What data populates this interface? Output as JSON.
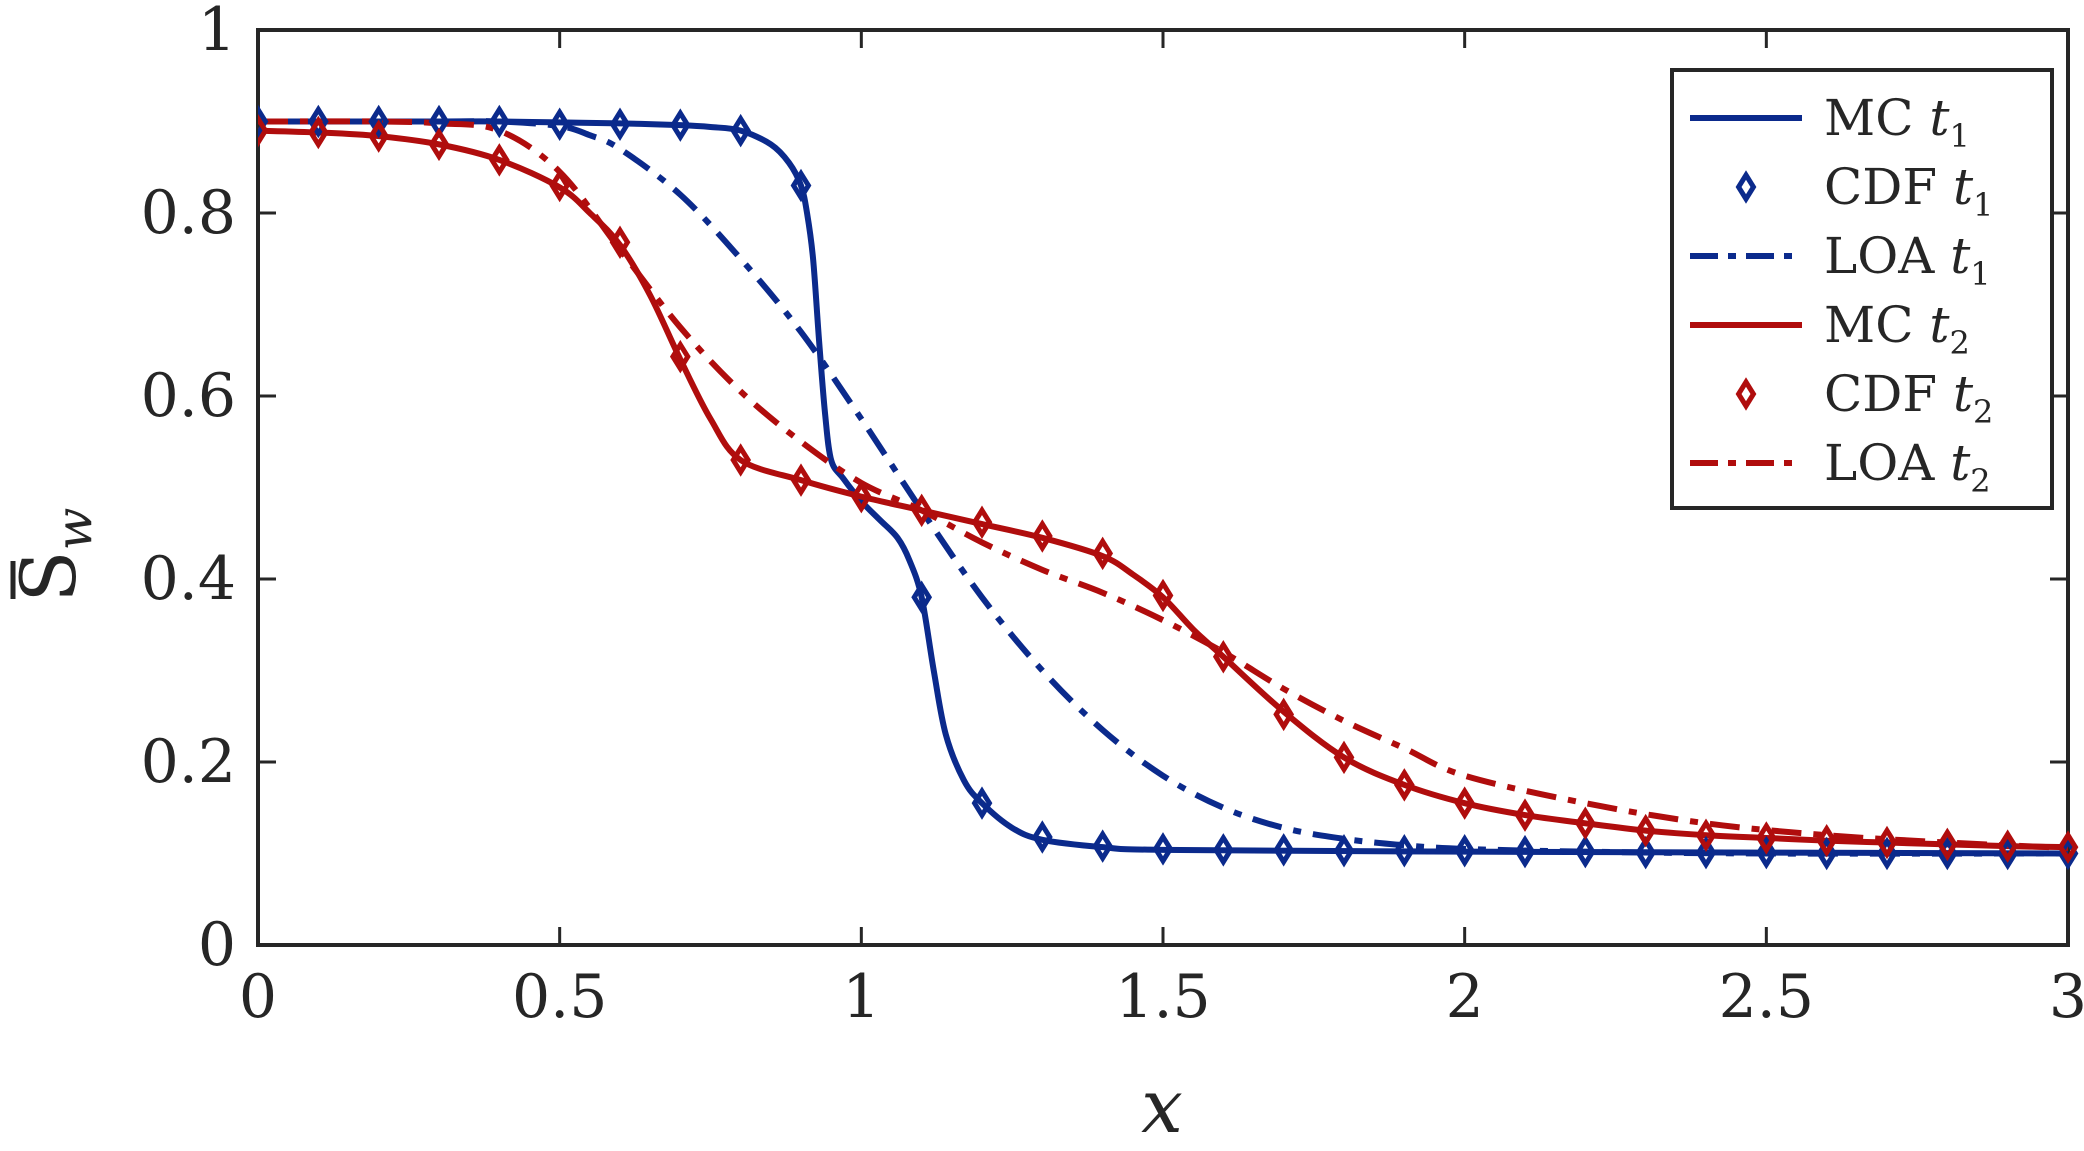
{
  "chart_data": {
    "type": "line",
    "xlabel": "x",
    "ylabel": {
      "base": "S",
      "subscript": "w",
      "overbar": true
    },
    "xlim": [
      0,
      3
    ],
    "ylim": [
      0,
      1
    ],
    "xticks": [
      0,
      0.5,
      1,
      1.5,
      2,
      2.5,
      3
    ],
    "xtick_labels": [
      "0",
      "0.5",
      "1",
      "1.5",
      "2",
      "2.5",
      "3"
    ],
    "yticks": [
      0,
      0.2,
      0.4,
      0.6,
      0.8,
      1
    ],
    "ytick_labels": [
      "0",
      "0.2",
      "0.4",
      "0.6",
      "0.8",
      "1"
    ],
    "grid": false,
    "legend_position": "top-right",
    "colors": {
      "t1": "#0b2a8c",
      "t2": "#b00d0d",
      "text": "#262626",
      "axes": "#262626"
    },
    "series": [
      {
        "name": "MC t1",
        "legend_main": "MC ",
        "legend_var": "t",
        "legend_sub": "1",
        "style": "solid",
        "color": "#0b2a8c",
        "x": [
          0,
          0.1,
          0.2,
          0.3,
          0.4,
          0.5,
          0.6,
          0.7,
          0.75,
          0.8,
          0.85,
          0.88,
          0.9,
          0.91,
          0.92,
          0.93,
          0.94,
          0.95,
          0.97,
          1.0,
          1.03,
          1.06,
          1.08,
          1.1,
          1.12,
          1.14,
          1.17,
          1.2,
          1.25,
          1.3,
          1.4,
          1.5,
          2.0,
          2.5,
          3.0
        ],
        "y": [
          0.9,
          0.9,
          0.9,
          0.9,
          0.9,
          0.899,
          0.898,
          0.896,
          0.894,
          0.89,
          0.875,
          0.855,
          0.83,
          0.8,
          0.75,
          0.66,
          0.58,
          0.53,
          0.51,
          0.485,
          0.465,
          0.445,
          0.42,
          0.38,
          0.3,
          0.23,
          0.18,
          0.155,
          0.128,
          0.115,
          0.107,
          0.104,
          0.102,
          0.101,
          0.1
        ]
      },
      {
        "name": "CDF t1",
        "legend_main": "CDF ",
        "legend_var": "t",
        "legend_sub": "1",
        "style": "diamond",
        "color": "#0b2a8c",
        "x": [
          0,
          0.1,
          0.2,
          0.3,
          0.4,
          0.5,
          0.6,
          0.7,
          0.8,
          0.9,
          1.1,
          1.2,
          1.3,
          1.4,
          1.5,
          1.6,
          1.7,
          1.8,
          1.9,
          2.0,
          2.1,
          2.2,
          2.3,
          2.4,
          2.5,
          2.6,
          2.7,
          2.8,
          2.9,
          3.0
        ],
        "y": [
          0.9,
          0.9,
          0.9,
          0.9,
          0.9,
          0.897,
          0.897,
          0.896,
          0.89,
          0.83,
          0.38,
          0.155,
          0.118,
          0.108,
          0.105,
          0.104,
          0.104,
          0.103,
          0.103,
          0.103,
          0.102,
          0.102,
          0.101,
          0.101,
          0.101,
          0.1,
          0.1,
          0.1,
          0.1,
          0.1
        ]
      },
      {
        "name": "LOA t1",
        "legend_main": "LOA ",
        "legend_var": "t",
        "legend_sub": "1",
        "style": "dashdot",
        "color": "#0b2a8c",
        "x": [
          0,
          0.3,
          0.4,
          0.5,
          0.55,
          0.6,
          0.7,
          0.8,
          0.9,
          1.0,
          1.1,
          1.2,
          1.3,
          1.4,
          1.5,
          1.6,
          1.7,
          1.8,
          1.9,
          2.0,
          2.2,
          2.5,
          3.0
        ],
        "y": [
          0.9,
          0.9,
          0.9,
          0.895,
          0.885,
          0.87,
          0.82,
          0.75,
          0.67,
          0.575,
          0.475,
          0.38,
          0.3,
          0.235,
          0.185,
          0.15,
          0.128,
          0.116,
          0.109,
          0.105,
          0.102,
          0.1,
          0.1
        ]
      },
      {
        "name": "MC t2",
        "legend_main": "MC ",
        "legend_var": "t",
        "legend_sub": "2",
        "style": "solid",
        "color": "#b00d0d",
        "x": [
          0,
          0.1,
          0.2,
          0.3,
          0.4,
          0.5,
          0.55,
          0.6,
          0.65,
          0.7,
          0.75,
          0.8,
          0.9,
          1.0,
          1.1,
          1.2,
          1.3,
          1.4,
          1.45,
          1.5,
          1.55,
          1.6,
          1.7,
          1.8,
          1.9,
          2.0,
          2.1,
          2.2,
          2.3,
          2.4,
          2.5,
          2.6,
          2.7,
          2.8,
          2.9,
          3.0
        ],
        "y": [
          0.89,
          0.888,
          0.884,
          0.875,
          0.858,
          0.828,
          0.8,
          0.765,
          0.71,
          0.64,
          0.575,
          0.53,
          0.508,
          0.49,
          0.475,
          0.46,
          0.445,
          0.425,
          0.405,
          0.38,
          0.345,
          0.315,
          0.255,
          0.205,
          0.175,
          0.155,
          0.142,
          0.133,
          0.125,
          0.12,
          0.117,
          0.114,
          0.112,
          0.11,
          0.108,
          0.107
        ]
      },
      {
        "name": "CDF t2",
        "legend_main": "CDF ",
        "legend_var": "t",
        "legend_sub": "2",
        "style": "diamond",
        "color": "#b00d0d",
        "x": [
          0,
          0.1,
          0.2,
          0.3,
          0.4,
          0.5,
          0.6,
          0.7,
          0.8,
          0.9,
          1.0,
          1.1,
          1.2,
          1.3,
          1.4,
          1.5,
          1.6,
          1.7,
          1.8,
          1.9,
          2.0,
          2.1,
          2.2,
          2.3,
          2.4,
          2.5,
          2.6,
          2.7,
          2.8,
          2.9,
          3.0
        ],
        "y": [
          0.89,
          0.888,
          0.884,
          0.875,
          0.858,
          0.83,
          0.768,
          0.643,
          0.53,
          0.508,
          0.49,
          0.475,
          0.462,
          0.447,
          0.428,
          0.382,
          0.315,
          0.252,
          0.205,
          0.175,
          0.155,
          0.142,
          0.133,
          0.125,
          0.12,
          0.117,
          0.114,
          0.112,
          0.11,
          0.108,
          0.107
        ]
      },
      {
        "name": "LOA t2",
        "legend_main": "LOA ",
        "legend_var": "t",
        "legend_sub": "2",
        "style": "dashdot",
        "color": "#b00d0d",
        "x": [
          0,
          0.2,
          0.3,
          0.4,
          0.5,
          0.6,
          0.7,
          0.8,
          0.9,
          1.0,
          1.1,
          1.2,
          1.3,
          1.4,
          1.5,
          1.6,
          1.7,
          1.8,
          1.9,
          2.0,
          2.2,
          2.4,
          2.6,
          2.8,
          3.0
        ],
        "y": [
          0.9,
          0.9,
          0.898,
          0.89,
          0.845,
          0.76,
          0.675,
          0.605,
          0.55,
          0.505,
          0.475,
          0.44,
          0.41,
          0.385,
          0.355,
          0.32,
          0.28,
          0.245,
          0.215,
          0.185,
          0.155,
          0.133,
          0.12,
          0.112,
          0.106
        ]
      }
    ]
  }
}
